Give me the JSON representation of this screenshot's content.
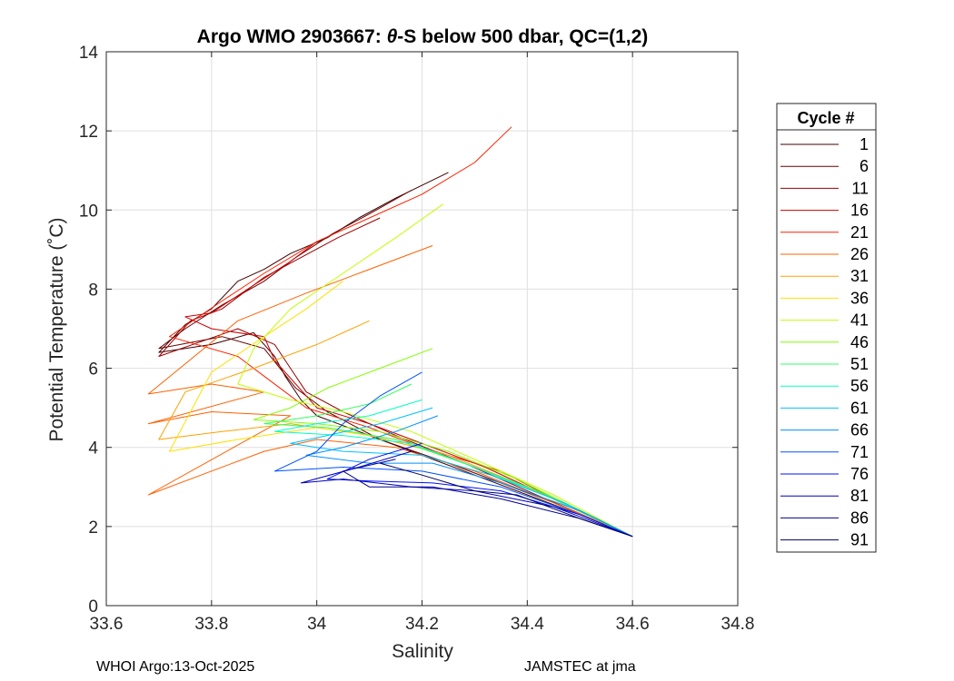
{
  "chart_data": {
    "type": "line",
    "title_prefix": "Argo WMO 2903667: ",
    "title_theta": "θ",
    "title_suffix": "-S below 500 dbar,  QC=(1,2)",
    "xlabel": "Salinity",
    "ylabel": "Potential Temperature (˚C)",
    "xlim": [
      33.6,
      34.8
    ],
    "ylim": [
      0,
      14
    ],
    "xticks": [
      33.6,
      33.8,
      34,
      34.2,
      34.4,
      34.6,
      34.8
    ],
    "xtick_labels": [
      "33.6",
      "33.8",
      "34",
      "34.2",
      "34.4",
      "34.6",
      "34.8"
    ],
    "yticks": [
      0,
      2,
      4,
      6,
      8,
      10,
      12,
      14
    ],
    "ytick_labels": [
      "0",
      "2",
      "4",
      "6",
      "8",
      "10",
      "12",
      "14"
    ],
    "grid": true,
    "legend_title": "Cycle #",
    "legend_position": "right",
    "series": [
      {
        "name": "1",
        "color": "#400000",
        "points": [
          [
            34.25,
            10.95
          ],
          [
            34.15,
            10.3
          ],
          [
            34.08,
            9.8
          ],
          [
            34.02,
            9.3
          ],
          [
            33.95,
            8.9
          ],
          [
            33.9,
            8.5
          ],
          [
            33.85,
            8.2
          ],
          [
            33.8,
            7.5
          ],
          [
            33.75,
            7.1
          ],
          [
            33.7,
            6.4
          ],
          [
            33.8,
            6.6
          ],
          [
            33.88,
            6.9
          ],
          [
            33.92,
            6.3
          ],
          [
            33.94,
            5.8
          ],
          [
            33.97,
            5.2
          ],
          [
            34.0,
            4.8
          ],
          [
            34.1,
            4.3
          ],
          [
            34.2,
            3.8
          ],
          [
            34.3,
            3.3
          ],
          [
            34.4,
            2.8
          ],
          [
            34.5,
            2.3
          ],
          [
            34.6,
            1.75
          ]
        ]
      },
      {
        "name": "6",
        "color": "#6a0000",
        "points": [
          [
            34.18,
            10.5
          ],
          [
            34.1,
            9.9
          ],
          [
            34.03,
            9.4
          ],
          [
            33.96,
            8.8
          ],
          [
            33.9,
            8.2
          ],
          [
            33.82,
            7.6
          ],
          [
            33.75,
            7.0
          ],
          [
            33.7,
            6.5
          ],
          [
            33.82,
            6.8
          ],
          [
            33.9,
            6.5
          ],
          [
            33.93,
            6.0
          ],
          [
            33.96,
            5.5
          ],
          [
            34.02,
            4.9
          ],
          [
            34.12,
            4.2
          ],
          [
            34.25,
            3.6
          ],
          [
            34.35,
            3.1
          ],
          [
            34.45,
            2.6
          ],
          [
            34.6,
            1.75
          ]
        ]
      },
      {
        "name": "11",
        "color": "#990000",
        "points": [
          [
            34.12,
            9.8
          ],
          [
            34.04,
            9.3
          ],
          [
            33.97,
            8.8
          ],
          [
            33.9,
            8.3
          ],
          [
            33.82,
            7.5
          ],
          [
            33.76,
            7.2
          ],
          [
            33.7,
            6.3
          ],
          [
            33.85,
            7.0
          ],
          [
            33.92,
            6.6
          ],
          [
            33.95,
            6.0
          ],
          [
            33.98,
            5.4
          ],
          [
            34.05,
            4.9
          ],
          [
            34.15,
            4.3
          ],
          [
            34.28,
            3.6
          ],
          [
            34.4,
            2.9
          ],
          [
            34.6,
            1.75
          ]
        ]
      },
      {
        "name": "16",
        "color": "#cc0000",
        "points": [
          [
            34.0,
            9.2
          ],
          [
            33.95,
            8.7
          ],
          [
            33.88,
            8.1
          ],
          [
            33.8,
            7.4
          ],
          [
            33.75,
            7.3
          ],
          [
            33.8,
            7.0
          ],
          [
            33.9,
            6.8
          ],
          [
            33.92,
            6.2
          ],
          [
            33.96,
            5.6
          ],
          [
            34.0,
            5.0
          ],
          [
            34.1,
            4.6
          ],
          [
            34.2,
            4.1
          ],
          [
            34.32,
            3.5
          ],
          [
            34.45,
            2.7
          ],
          [
            34.6,
            1.75
          ]
        ]
      },
      {
        "name": "21",
        "color": "#ff2000",
        "points": [
          [
            34.37,
            12.1
          ],
          [
            34.3,
            11.2
          ],
          [
            34.2,
            10.4
          ],
          [
            34.1,
            9.8
          ],
          [
            34.0,
            9.2
          ],
          [
            33.9,
            8.4
          ],
          [
            33.82,
            7.7
          ],
          [
            33.72,
            6.8
          ],
          [
            33.85,
            6.3
          ],
          [
            33.9,
            5.8
          ],
          [
            33.94,
            5.4
          ],
          [
            33.98,
            5.0
          ],
          [
            34.1,
            4.5
          ],
          [
            34.2,
            4.0
          ],
          [
            34.35,
            3.4
          ],
          [
            34.48,
            2.5
          ],
          [
            34.6,
            1.75
          ]
        ]
      },
      {
        "name": "26",
        "color": "#ff6000",
        "points": [
          [
            34.22,
            9.1
          ],
          [
            34.1,
            8.5
          ],
          [
            33.98,
            7.9
          ],
          [
            33.85,
            7.2
          ],
          [
            33.68,
            5.35
          ],
          [
            33.8,
            5.6
          ],
          [
            33.9,
            5.4
          ],
          [
            33.68,
            4.6
          ],
          [
            33.8,
            4.9
          ],
          [
            33.95,
            4.8
          ],
          [
            33.68,
            2.8
          ],
          [
            33.78,
            3.3
          ],
          [
            33.9,
            3.9
          ],
          [
            34.0,
            4.2
          ],
          [
            34.15,
            4.0
          ],
          [
            34.3,
            3.4
          ],
          [
            34.45,
            2.6
          ],
          [
            34.6,
            1.75
          ]
        ]
      },
      {
        "name": "31",
        "color": "#ffa000",
        "points": [
          [
            34.1,
            7.2
          ],
          [
            34.0,
            6.6
          ],
          [
            33.88,
            6.0
          ],
          [
            33.75,
            5.4
          ],
          [
            33.7,
            4.2
          ],
          [
            33.82,
            4.4
          ],
          [
            33.95,
            4.6
          ],
          [
            34.1,
            4.3
          ],
          [
            34.25,
            3.8
          ],
          [
            34.4,
            3.0
          ],
          [
            34.6,
            1.75
          ]
        ]
      },
      {
        "name": "36",
        "color": "#ffe000",
        "points": [
          [
            34.05,
            8.2
          ],
          [
            33.98,
            7.5
          ],
          [
            33.9,
            6.8
          ],
          [
            33.8,
            5.9
          ],
          [
            33.72,
            3.9
          ],
          [
            33.85,
            4.2
          ],
          [
            34.0,
            4.5
          ],
          [
            34.15,
            4.2
          ],
          [
            34.3,
            3.5
          ],
          [
            34.45,
            2.7
          ],
          [
            34.6,
            1.75
          ]
        ]
      },
      {
        "name": "41",
        "color": "#c0ff00",
        "points": [
          [
            34.24,
            10.15
          ],
          [
            34.15,
            9.3
          ],
          [
            34.05,
            8.4
          ],
          [
            33.95,
            7.5
          ],
          [
            33.88,
            6.5
          ],
          [
            33.85,
            5.6
          ],
          [
            33.95,
            5.2
          ],
          [
            34.05,
            4.9
          ],
          [
            34.18,
            4.4
          ],
          [
            34.3,
            3.7
          ],
          [
            34.45,
            2.8
          ],
          [
            34.6,
            1.75
          ]
        ]
      },
      {
        "name": "46",
        "color": "#80ff00",
        "points": [
          [
            34.22,
            6.5
          ],
          [
            34.12,
            6.0
          ],
          [
            34.02,
            5.5
          ],
          [
            33.95,
            5.0
          ],
          [
            33.88,
            4.7
          ],
          [
            34.0,
            4.6
          ],
          [
            34.12,
            4.4
          ],
          [
            34.25,
            3.9
          ],
          [
            34.38,
            3.2
          ],
          [
            34.6,
            1.75
          ]
        ]
      },
      {
        "name": "51",
        "color": "#30ff60",
        "points": [
          [
            34.18,
            5.6
          ],
          [
            34.1,
            5.1
          ],
          [
            34.0,
            4.8
          ],
          [
            33.9,
            4.6
          ],
          [
            34.02,
            4.5
          ],
          [
            34.15,
            4.2
          ],
          [
            34.28,
            3.6
          ],
          [
            34.42,
            2.9
          ],
          [
            34.6,
            1.75
          ]
        ]
      },
      {
        "name": "56",
        "color": "#00ffc0",
        "points": [
          [
            34.2,
            5.2
          ],
          [
            34.1,
            4.8
          ],
          [
            34.0,
            4.6
          ],
          [
            33.92,
            4.4
          ],
          [
            34.05,
            4.3
          ],
          [
            34.18,
            4.1
          ],
          [
            34.3,
            3.5
          ],
          [
            34.45,
            2.7
          ],
          [
            34.6,
            1.75
          ]
        ]
      },
      {
        "name": "61",
        "color": "#00c0ff",
        "points": [
          [
            34.22,
            5.0
          ],
          [
            34.12,
            4.6
          ],
          [
            34.02,
            4.3
          ],
          [
            33.95,
            4.1
          ],
          [
            34.05,
            3.9
          ],
          [
            34.2,
            3.8
          ],
          [
            34.33,
            3.3
          ],
          [
            34.47,
            2.6
          ],
          [
            34.6,
            1.75
          ]
        ]
      },
      {
        "name": "66",
        "color": "#0090ff",
        "points": [
          [
            34.23,
            4.8
          ],
          [
            34.15,
            4.4
          ],
          [
            34.05,
            4.0
          ],
          [
            33.98,
            3.8
          ],
          [
            34.1,
            3.6
          ],
          [
            34.22,
            3.6
          ],
          [
            34.35,
            3.1
          ],
          [
            34.5,
            2.4
          ],
          [
            34.6,
            1.75
          ]
        ]
      },
      {
        "name": "71",
        "color": "#0050ff",
        "points": [
          [
            34.2,
            5.9
          ],
          [
            34.12,
            5.3
          ],
          [
            34.05,
            4.6
          ],
          [
            34.0,
            3.9
          ],
          [
            33.92,
            3.4
          ],
          [
            34.05,
            3.5
          ],
          [
            34.2,
            3.4
          ],
          [
            34.35,
            3.0
          ],
          [
            34.5,
            2.3
          ],
          [
            34.6,
            1.75
          ]
        ]
      },
      {
        "name": "76",
        "color": "#0010ff",
        "points": [
          [
            34.2,
            4.1
          ],
          [
            34.1,
            3.7
          ],
          [
            34.02,
            3.2
          ],
          [
            34.1,
            3.15
          ],
          [
            34.22,
            3.1
          ],
          [
            34.35,
            2.9
          ],
          [
            34.5,
            2.3
          ],
          [
            34.6,
            1.75
          ]
        ]
      },
      {
        "name": "81",
        "color": "#0000c0",
        "points": [
          [
            34.18,
            3.9
          ],
          [
            34.08,
            3.5
          ],
          [
            33.97,
            3.1
          ],
          [
            34.05,
            3.2
          ],
          [
            34.18,
            3.0
          ],
          [
            34.3,
            2.9
          ],
          [
            34.45,
            2.5
          ],
          [
            34.6,
            1.75
          ]
        ]
      },
      {
        "name": "86",
        "color": "#000090",
        "points": [
          [
            34.15,
            3.7
          ],
          [
            34.05,
            3.4
          ],
          [
            34.1,
            3.0
          ],
          [
            34.22,
            3.0
          ],
          [
            34.35,
            2.7
          ],
          [
            34.5,
            2.2
          ],
          [
            34.6,
            1.75
          ]
        ]
      },
      {
        "name": "91",
        "color": "#000060",
        "points": [
          [
            34.12,
            3.6
          ],
          [
            34.2,
            3.3
          ],
          [
            34.3,
            2.9
          ],
          [
            34.38,
            2.8
          ],
          [
            34.5,
            2.2
          ],
          [
            34.6,
            1.75
          ]
        ]
      }
    ]
  },
  "footer": {
    "left_text": "WHOI Argo:13-Oct-2025",
    "right_text": "JAMSTEC at jma"
  }
}
